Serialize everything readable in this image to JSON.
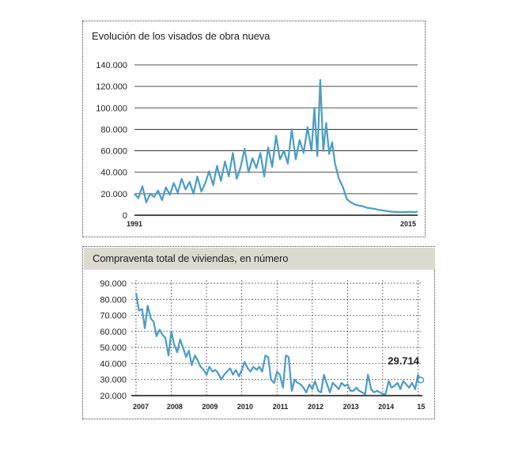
{
  "chart_data": [
    {
      "type": "line",
      "title": "Evolución de los visados de obra nueva",
      "xlabel": "",
      "ylabel": "",
      "x_range": [
        1991,
        2015
      ],
      "ylim": [
        0,
        140000
      ],
      "y_ticks": [
        0,
        20000,
        40000,
        60000,
        80000,
        100000,
        120000,
        140000
      ],
      "y_tick_labels": [
        "0",
        "20.000",
        "40.000",
        "60.000",
        "80.000",
        "100.000",
        "120.000",
        "140.000"
      ],
      "x_tick_labels": [
        "1991",
        "2015"
      ],
      "grid": "horizontal",
      "color": "#4a9cc8",
      "series": [
        {
          "x": [
            1991.0,
            1991.33,
            1991.67,
            1992.0,
            1992.33,
            1992.67,
            1993.0,
            1993.33,
            1993.67,
            1994.0,
            1994.33,
            1994.67,
            1995.0,
            1995.33,
            1995.67,
            1996.0,
            1996.33,
            1996.67,
            1997.0,
            1997.33,
            1997.67,
            1998.0,
            1998.33,
            1998.67,
            1999.0,
            1999.33,
            1999.67,
            2000.0,
            2000.33,
            2000.67,
            2001.0,
            2001.33,
            2001.67,
            2002.0,
            2002.33,
            2002.67,
            2003.0,
            2003.33,
            2003.67,
            2004.0,
            2004.33,
            2004.67,
            2005.0,
            2005.33,
            2005.67,
            2006.0,
            2006.25,
            2006.5,
            2006.75,
            2007.0,
            2007.25,
            2007.5,
            2007.75,
            2008.0,
            2008.33,
            2008.67,
            2009.0,
            2009.33,
            2009.67,
            2010.0,
            2010.33,
            2010.67,
            2011.0,
            2011.33,
            2011.67,
            2012.0,
            2012.33,
            2012.67,
            2013.0,
            2013.33,
            2013.67,
            2014.0,
            2014.33,
            2014.67,
            2015.0
          ],
          "values": [
            20000,
            16000,
            27000,
            12000,
            20000,
            17000,
            23000,
            14000,
            26000,
            19000,
            30000,
            21000,
            34000,
            24000,
            31000,
            20000,
            36000,
            22000,
            30000,
            41000,
            28000,
            46000,
            32000,
            50000,
            36000,
            58000,
            34000,
            45000,
            62000,
            40000,
            53000,
            44000,
            58000,
            36000,
            63000,
            45000,
            74000,
            52000,
            60000,
            48000,
            80000,
            52000,
            70000,
            58000,
            82000,
            60000,
            100000,
            55000,
            126000,
            60000,
            86000,
            57000,
            68000,
            48000,
            34000,
            26000,
            15000,
            12000,
            10000,
            9000,
            8500,
            7000,
            6500,
            6000,
            5000,
            4500,
            4000,
            3500,
            3000,
            3000,
            2800,
            3000,
            3200,
            2800,
            3400
          ]
        }
      ]
    },
    {
      "type": "line",
      "title": "Compraventa total de viviendas, en número",
      "xlabel": "",
      "ylabel": "",
      "ylim": [
        20000,
        90000
      ],
      "y_ticks": [
        20000,
        30000,
        40000,
        50000,
        60000,
        70000,
        80000,
        90000
      ],
      "y_tick_labels": [
        "20.000",
        "30.000",
        "40.000",
        "50.000",
        "60.000",
        "70.000",
        "80.000",
        "90.000"
      ],
      "categories": [
        "2007",
        "2008",
        "2009",
        "2010",
        "2011",
        "2012",
        "2013",
        "2014",
        "15"
      ],
      "grid": "both-dashed",
      "color": "#4a9cc8",
      "annotation": {
        "text": "29.714",
        "value": 29714
      },
      "series": [
        {
          "x": [
            2007.0,
            2007.08,
            2007.17,
            2007.25,
            2007.33,
            2007.42,
            2007.5,
            2007.58,
            2007.67,
            2007.75,
            2007.83,
            2007.92,
            2008.0,
            2008.08,
            2008.17,
            2008.25,
            2008.33,
            2008.42,
            2008.5,
            2008.58,
            2008.67,
            2008.75,
            2008.83,
            2008.92,
            2009.0,
            2009.08,
            2009.17,
            2009.25,
            2009.33,
            2009.42,
            2009.5,
            2009.58,
            2009.67,
            2009.75,
            2009.83,
            2009.92,
            2010.0,
            2010.08,
            2010.17,
            2010.25,
            2010.33,
            2010.42,
            2010.5,
            2010.58,
            2010.67,
            2010.75,
            2010.83,
            2010.92,
            2011.0,
            2011.08,
            2011.17,
            2011.25,
            2011.33,
            2011.42,
            2011.5,
            2011.58,
            2011.67,
            2011.75,
            2011.83,
            2011.92,
            2012.0,
            2012.08,
            2012.17,
            2012.25,
            2012.33,
            2012.42,
            2012.5,
            2012.58,
            2012.67,
            2012.75,
            2012.83,
            2012.92,
            2013.0,
            2013.08,
            2013.17,
            2013.25,
            2013.33,
            2013.42,
            2013.5,
            2013.58,
            2013.67,
            2013.75,
            2013.83,
            2013.92,
            2014.0,
            2014.08,
            2014.17,
            2014.25,
            2014.33,
            2014.42,
            2014.5,
            2014.58,
            2014.67,
            2014.75,
            2014.83,
            2014.92,
            2015.0,
            2015.08
          ],
          "values": [
            84000,
            73000,
            74000,
            62000,
            76000,
            68000,
            66000,
            57000,
            61000,
            58000,
            56000,
            45000,
            60000,
            52000,
            47000,
            55000,
            50000,
            44000,
            48000,
            39000,
            45000,
            42000,
            38000,
            36000,
            33000,
            38000,
            35000,
            36000,
            34000,
            30000,
            33000,
            35000,
            37000,
            33000,
            36000,
            32000,
            36000,
            41000,
            37000,
            35000,
            38000,
            36000,
            38000,
            35000,
            45000,
            44000,
            30000,
            28000,
            35000,
            33000,
            25000,
            45000,
            44000,
            23000,
            30000,
            28000,
            27000,
            25000,
            22000,
            27000,
            24000,
            29000,
            23000,
            22000,
            33000,
            27000,
            22000,
            28000,
            26000,
            24000,
            28000,
            26000,
            27000,
            23000,
            23000,
            25000,
            23000,
            22000,
            21000,
            33000,
            24000,
            22000,
            23000,
            22000,
            21000,
            21000,
            29000,
            25000,
            26000,
            28000,
            24000,
            29000,
            27000,
            25000,
            28000,
            24000,
            33000,
            29714
          ]
        }
      ]
    }
  ]
}
